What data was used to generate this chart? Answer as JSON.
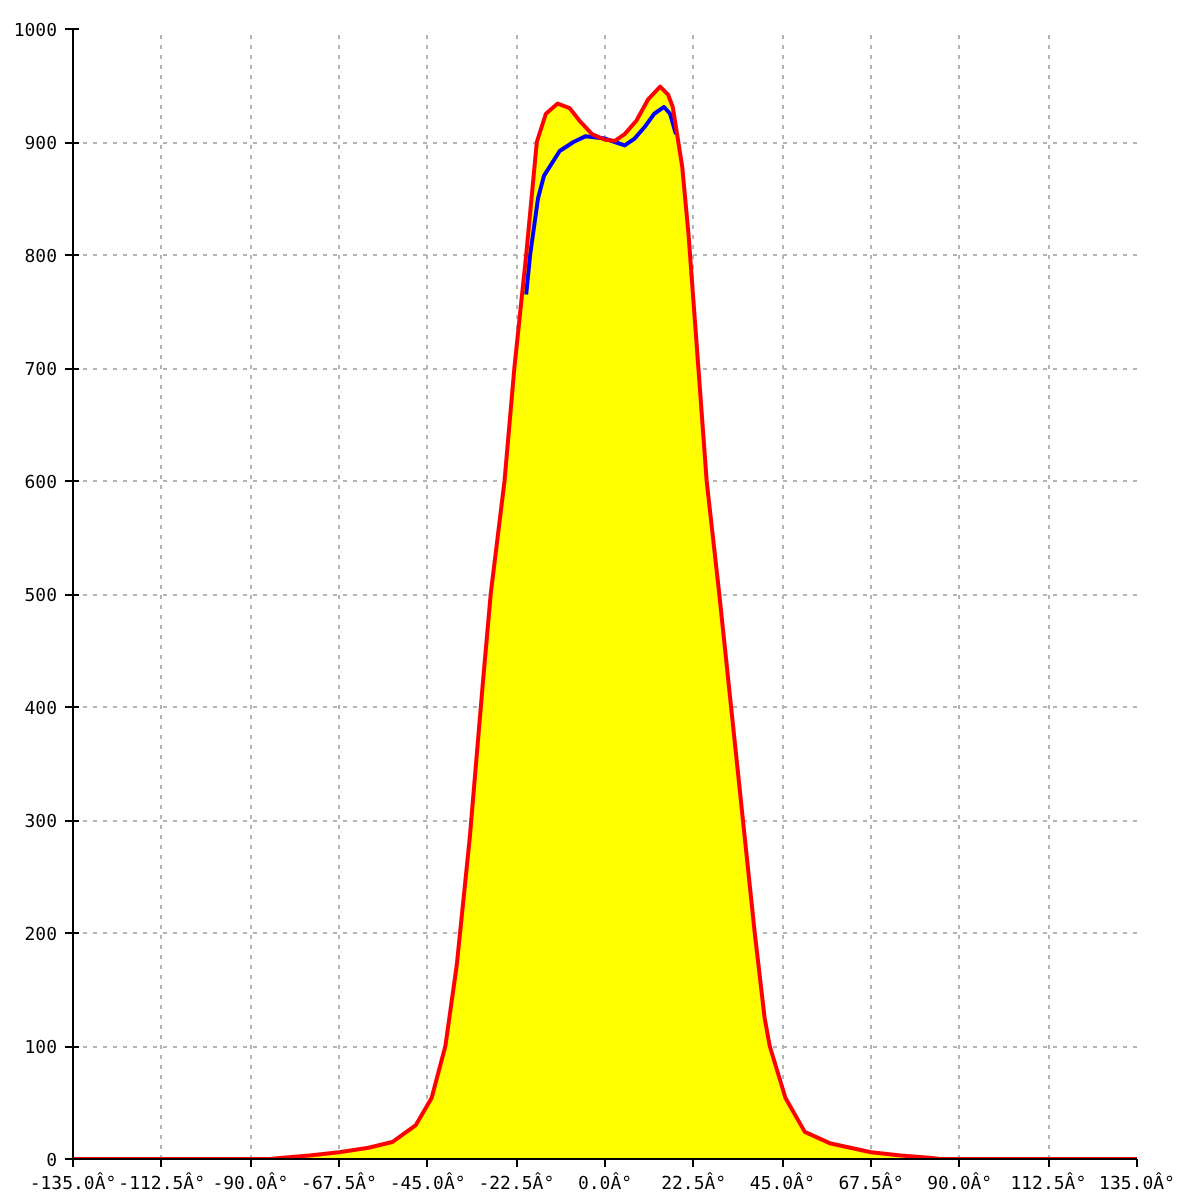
{
  "chart_data": {
    "type": "area",
    "xlim": [
      -135,
      135
    ],
    "xticks": [
      {
        "value": -135,
        "label": "-135.0Â°"
      },
      {
        "value": -112.5,
        "label": "-112.5Â°"
      },
      {
        "value": -90,
        "label": "-90.0Â°"
      },
      {
        "value": -67.5,
        "label": "-67.5Â°"
      },
      {
        "value": -45,
        "label": "-45.0Â°"
      },
      {
        "value": -22.5,
        "label": "-22.5Â°"
      },
      {
        "value": 0,
        "label": "0.0Â°"
      },
      {
        "value": 22.5,
        "label": "22.5Â°"
      },
      {
        "value": 45,
        "label": "45.0Â°"
      },
      {
        "value": 67.5,
        "label": "67.5Â°"
      },
      {
        "value": 90,
        "label": "90.0Â°"
      },
      {
        "value": 112.5,
        "label": "112.5Â°"
      },
      {
        "value": 135,
        "label": "135.0Â°"
      }
    ],
    "ylim": [
      0,
      1000
    ],
    "yticks": [
      0,
      100,
      200,
      300,
      400,
      500,
      600,
      700,
      800,
      900,
      1000
    ],
    "grid": true,
    "series": [
      {
        "color": "#ffff00",
        "x": [
          -85,
          -82.5,
          -75,
          -67.5,
          -60,
          -54,
          -48,
          -44,
          -40.5,
          -37.6,
          -34.3,
          -31,
          -29,
          -25.5,
          -23,
          -20,
          -17.3,
          -15,
          -12,
          -9,
          -6.5,
          -3.3,
          0,
          2.5,
          5,
          8,
          11,
          14,
          16,
          17.2,
          19.6,
          21.2,
          23.7,
          25.8,
          29,
          32,
          35,
          38,
          40.5,
          41.8,
          45.8,
          50.7,
          57,
          67.5,
          75,
          83,
          85
        ],
        "values": [
          0,
          1,
          3,
          6,
          10,
          15,
          30,
          54,
          100,
          172,
          285,
          421,
          500,
          600,
          700,
          800,
          900,
          925,
          934,
          930,
          919,
          907,
          902,
          901,
          907,
          919,
          938,
          949,
          942,
          931,
          878,
          818,
          700,
          600,
          500,
          400,
          300,
          200,
          125,
          100,
          54,
          24,
          14,
          6,
          3,
          1,
          0
        ]
      },
      {
        "type": "line",
        "color": "#0000ff",
        "x": [
          -20,
          -19,
          -17,
          -15.5,
          -11.5,
          -8,
          -5,
          0,
          2.5,
          5,
          7.5,
          10,
          12.5,
          15,
          16.5,
          18
        ],
        "values": [
          765,
          800,
          850,
          870,
          892,
          900,
          905,
          903,
          900,
          897,
          903,
          913,
          925,
          931,
          925,
          907
        ]
      },
      {
        "type": "line",
        "color": "#ff0000",
        "x": [
          -135,
          -90,
          -85,
          -82.5,
          -75,
          -67.5,
          -60,
          -54,
          -48,
          -44,
          -40.5,
          -37.6,
          -34.3,
          -31,
          -29,
          -25.5,
          -23,
          -20,
          -17.3,
          -15,
          -12,
          -9,
          -6.5,
          -3.3,
          0,
          2.5,
          5,
          8,
          11,
          14,
          16,
          17.2,
          19.6,
          21.2,
          23.7,
          25.8,
          29,
          32,
          35,
          38,
          40.5,
          41.8,
          45.8,
          50.7,
          57,
          67.5,
          75,
          83,
          85,
          90,
          135
        ],
        "values": [
          0,
          0,
          0,
          1,
          3,
          6,
          10,
          15,
          30,
          54,
          100,
          172,
          285,
          421,
          500,
          600,
          700,
          800,
          900,
          925,
          934,
          930,
          919,
          907,
          902,
          901,
          907,
          919,
          938,
          949,
          942,
          931,
          878,
          818,
          700,
          600,
          500,
          400,
          300,
          200,
          125,
          100,
          54,
          24,
          14,
          6,
          3,
          1,
          0,
          0,
          0
        ]
      }
    ]
  }
}
